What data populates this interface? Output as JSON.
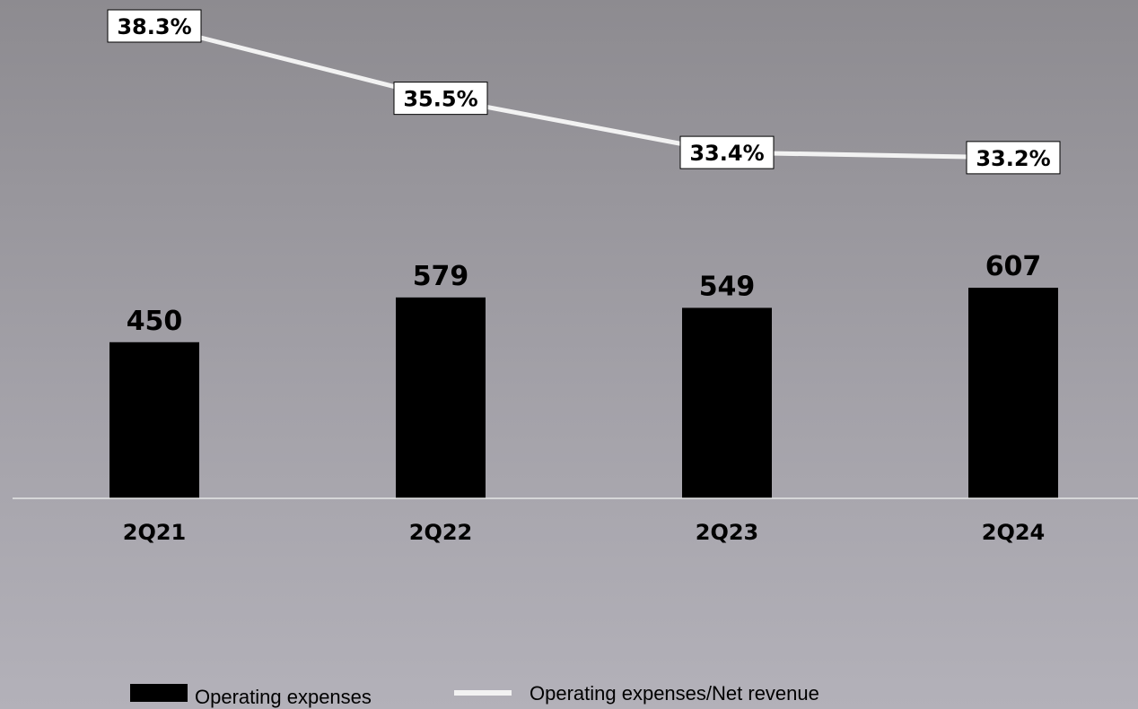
{
  "chart_data": {
    "type": "bar",
    "categories": [
      "2Q21",
      "2Q22",
      "2Q23",
      "2Q24"
    ],
    "series": [
      {
        "name": "Operating expenses",
        "type": "bar",
        "values": [
          450,
          579,
          549,
          607
        ],
        "labels": [
          "450",
          "579",
          "549",
          "607"
        ],
        "color": "#000000"
      },
      {
        "name": "Operating expenses/Net revenue",
        "type": "line",
        "values": [
          38.3,
          35.5,
          33.4,
          33.2
        ],
        "labels": [
          "38.3%",
          "35.5%",
          "33.4%",
          "33.2%"
        ],
        "color": "#f2f2f2"
      }
    ],
    "legend_position": "bottom",
    "grid": false
  }
}
